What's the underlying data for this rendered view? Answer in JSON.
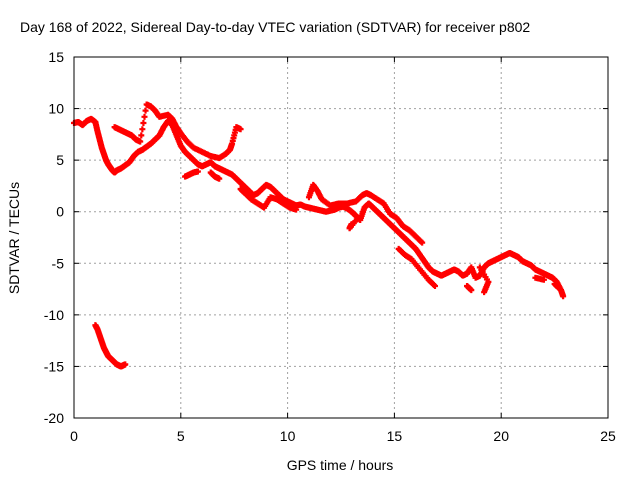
{
  "chart_data": {
    "type": "scatter",
    "title": "Day 168 of 2022, Sidereal Day-to-day VTEC variation (SDTVAR) for receiver p802",
    "xlabel": "GPS time / hours",
    "ylabel": "SDTVAR / TECUs",
    "xlim": [
      0,
      25
    ],
    "ylim": [
      -20,
      15
    ],
    "xticks": [
      0,
      5,
      10,
      15,
      20,
      25
    ],
    "yticks": [
      15,
      10,
      5,
      0,
      -5,
      -10,
      -15,
      -20
    ],
    "xtick_labels": [
      "0",
      "5",
      "10",
      "15",
      "20",
      "25"
    ],
    "ytick_labels": [
      "15",
      "10",
      "5",
      "0",
      "-5",
      "-10",
      "-15",
      "-20"
    ],
    "grid": true,
    "marker_color": "#ff0000",
    "series": [
      {
        "name": "main-trace",
        "points": [
          [
            0.0,
            8.6
          ],
          [
            0.2,
            8.7
          ],
          [
            0.4,
            8.4
          ],
          [
            0.6,
            8.8
          ],
          [
            0.8,
            9.0
          ],
          [
            1.0,
            8.7
          ],
          [
            1.1,
            7.8
          ],
          [
            1.2,
            7.0
          ],
          [
            1.3,
            6.2
          ],
          [
            1.4,
            5.6
          ],
          [
            1.5,
            5.0
          ],
          [
            1.6,
            4.6
          ],
          [
            1.7,
            4.3
          ],
          [
            1.8,
            4.0
          ],
          [
            1.9,
            3.8
          ],
          [
            2.0,
            4.0
          ],
          [
            2.2,
            4.2
          ],
          [
            2.4,
            4.5
          ],
          [
            2.6,
            4.8
          ],
          [
            2.8,
            5.4
          ],
          [
            3.0,
            5.8
          ],
          [
            3.2,
            6.0
          ],
          [
            3.4,
            6.3
          ],
          [
            3.6,
            6.6
          ],
          [
            3.8,
            7.0
          ],
          [
            4.0,
            7.4
          ],
          [
            4.2,
            8.2
          ],
          [
            4.4,
            8.8
          ],
          [
            4.6,
            8.4
          ],
          [
            4.8,
            7.4
          ],
          [
            5.0,
            6.4
          ],
          [
            5.2,
            5.8
          ],
          [
            5.4,
            5.4
          ],
          [
            5.6,
            5.0
          ],
          [
            5.8,
            4.6
          ],
          [
            6.0,
            4.4
          ],
          [
            6.2,
            4.6
          ],
          [
            6.4,
            4.8
          ],
          [
            6.6,
            4.4
          ],
          [
            6.8,
            4.2
          ],
          [
            7.0,
            4.0
          ],
          [
            7.2,
            3.8
          ],
          [
            7.4,
            3.6
          ],
          [
            7.6,
            3.2
          ],
          [
            7.8,
            2.8
          ],
          [
            8.0,
            2.4
          ],
          [
            8.2,
            2.0
          ],
          [
            8.4,
            1.6
          ],
          [
            8.6,
            1.8
          ],
          [
            8.8,
            2.2
          ],
          [
            9.0,
            2.6
          ],
          [
            9.2,
            2.4
          ],
          [
            9.4,
            2.0
          ],
          [
            9.6,
            1.6
          ],
          [
            9.8,
            1.2
          ],
          [
            10.0,
            1.0
          ],
          [
            10.2,
            0.8
          ],
          [
            10.4,
            0.6
          ],
          [
            10.6,
            0.7
          ],
          [
            10.8,
            0.5
          ],
          [
            11.0,
            0.4
          ],
          [
            11.2,
            0.3
          ],
          [
            11.4,
            0.2
          ],
          [
            11.6,
            0.1
          ],
          [
            11.8,
            0.0
          ],
          [
            12.0,
            0.1
          ],
          [
            12.2,
            0.2
          ],
          [
            12.4,
            0.4
          ],
          [
            12.6,
            0.5
          ],
          [
            12.8,
            0.3
          ],
          [
            13.0,
            0.0
          ],
          [
            13.2,
            -0.4
          ],
          [
            13.4,
            -0.8
          ],
          [
            13.6,
            0.4
          ],
          [
            13.8,
            0.8
          ],
          [
            14.0,
            0.4
          ],
          [
            14.2,
            0.0
          ],
          [
            14.4,
            -0.4
          ],
          [
            14.6,
            -0.8
          ],
          [
            14.8,
            -1.2
          ],
          [
            15.0,
            -1.6
          ],
          [
            15.2,
            -2.0
          ],
          [
            15.4,
            -2.4
          ],
          [
            15.6,
            -2.8
          ],
          [
            15.8,
            -3.2
          ],
          [
            16.0,
            -3.6
          ],
          [
            16.2,
            -4.2
          ],
          [
            16.4,
            -4.8
          ],
          [
            16.6,
            -5.4
          ],
          [
            16.8,
            -5.8
          ],
          [
            17.0,
            -6.0
          ],
          [
            17.2,
            -6.2
          ],
          [
            17.4,
            -6.0
          ],
          [
            17.6,
            -5.8
          ],
          [
            17.8,
            -5.6
          ],
          [
            18.0,
            -5.8
          ],
          [
            18.2,
            -6.2
          ],
          [
            18.4,
            -6.0
          ],
          [
            18.6,
            -5.4
          ],
          [
            18.8,
            -6.4
          ],
          [
            19.0,
            -6.2
          ],
          [
            19.2,
            -5.4
          ],
          [
            19.4,
            -5.0
          ],
          [
            19.6,
            -4.8
          ],
          [
            19.8,
            -4.6
          ],
          [
            20.0,
            -4.4
          ],
          [
            20.2,
            -4.2
          ],
          [
            20.4,
            -4.0
          ],
          [
            20.6,
            -4.2
          ],
          [
            20.8,
            -4.4
          ],
          [
            21.0,
            -4.8
          ],
          [
            21.2,
            -5.0
          ],
          [
            21.4,
            -5.2
          ],
          [
            21.6,
            -5.6
          ],
          [
            21.8,
            -5.8
          ],
          [
            22.0,
            -6.0
          ],
          [
            22.2,
            -6.2
          ],
          [
            22.4,
            -6.4
          ],
          [
            22.6,
            -6.8
          ],
          [
            22.8,
            -7.6
          ],
          [
            22.9,
            -8.2
          ]
        ]
      },
      {
        "name": "upper-branches",
        "points": [
          [
            1.9,
            8.2
          ],
          [
            2.1,
            8.0
          ],
          [
            2.3,
            7.8
          ],
          [
            2.5,
            7.6
          ],
          [
            2.7,
            7.4
          ],
          [
            2.9,
            7.0
          ],
          [
            3.1,
            6.8
          ],
          [
            3.4,
            10.4
          ],
          [
            3.6,
            10.2
          ],
          [
            3.8,
            9.8
          ],
          [
            4.0,
            9.2
          ],
          [
            4.4,
            9.4
          ],
          [
            4.6,
            9.0
          ],
          [
            4.8,
            8.2
          ],
          [
            5.0,
            7.6
          ],
          [
            5.3,
            6.8
          ],
          [
            5.6,
            6.2
          ],
          [
            6.0,
            5.8
          ],
          [
            6.4,
            5.4
          ],
          [
            6.8,
            5.2
          ],
          [
            7.1,
            5.6
          ],
          [
            7.3,
            6.0
          ],
          [
            7.4,
            6.6
          ],
          [
            7.6,
            8.2
          ],
          [
            7.8,
            8.0
          ],
          [
            6.4,
            3.8
          ],
          [
            6.6,
            3.4
          ],
          [
            6.8,
            3.2
          ],
          [
            5.2,
            3.4
          ],
          [
            5.4,
            3.6
          ],
          [
            5.6,
            3.8
          ],
          [
            5.8,
            3.9
          ]
        ]
      },
      {
        "name": "middle-branches",
        "points": [
          [
            7.8,
            2.2
          ],
          [
            8.0,
            1.8
          ],
          [
            8.3,
            1.2
          ],
          [
            8.6,
            0.8
          ],
          [
            8.9,
            0.4
          ],
          [
            9.2,
            1.4
          ],
          [
            9.5,
            1.2
          ],
          [
            9.8,
            0.8
          ],
          [
            10.1,
            0.4
          ],
          [
            10.4,
            0.2
          ],
          [
            11.0,
            1.4
          ],
          [
            11.2,
            2.6
          ],
          [
            11.4,
            2.0
          ],
          [
            11.6,
            1.2
          ],
          [
            12.0,
            0.6
          ],
          [
            12.4,
            0.8
          ],
          [
            12.8,
            0.8
          ],
          [
            13.2,
            1.0
          ],
          [
            13.5,
            1.6
          ],
          [
            13.7,
            1.8
          ],
          [
            13.9,
            1.6
          ],
          [
            14.2,
            1.2
          ],
          [
            14.5,
            0.8
          ],
          [
            14.8,
            -0.2
          ],
          [
            15.1,
            -0.6
          ],
          [
            15.4,
            -1.4
          ],
          [
            15.7,
            -1.8
          ],
          [
            16.0,
            -2.4
          ],
          [
            16.3,
            -3.0
          ],
          [
            15.2,
            -3.6
          ],
          [
            15.5,
            -4.2
          ],
          [
            15.8,
            -4.6
          ],
          [
            16.2,
            -5.6
          ],
          [
            16.6,
            -6.6
          ],
          [
            16.9,
            -7.2
          ],
          [
            13.0,
            -1.2
          ],
          [
            12.9,
            -1.6
          ],
          [
            13.3,
            -0.6
          ],
          [
            18.4,
            -7.2
          ],
          [
            18.6,
            -7.6
          ],
          [
            19.2,
            -7.8
          ],
          [
            19.4,
            -6.8
          ],
          [
            19.0,
            -5.4
          ],
          [
            21.6,
            -6.4
          ],
          [
            22.0,
            -6.6
          ],
          [
            22.5,
            -7.0
          ],
          [
            22.7,
            -7.4
          ]
        ]
      },
      {
        "name": "lower-left-fragment",
        "points": [
          [
            1.0,
            -11.0
          ],
          [
            1.1,
            -11.4
          ],
          [
            1.2,
            -12.0
          ],
          [
            1.3,
            -12.6
          ],
          [
            1.4,
            -13.2
          ],
          [
            1.5,
            -13.6
          ],
          [
            1.6,
            -14.0
          ],
          [
            1.7,
            -14.2
          ],
          [
            1.8,
            -14.4
          ],
          [
            1.9,
            -14.6
          ],
          [
            2.0,
            -14.8
          ],
          [
            2.1,
            -14.9
          ],
          [
            2.2,
            -15.0
          ],
          [
            2.3,
            -14.9
          ],
          [
            2.4,
            -14.8
          ]
        ]
      }
    ]
  }
}
